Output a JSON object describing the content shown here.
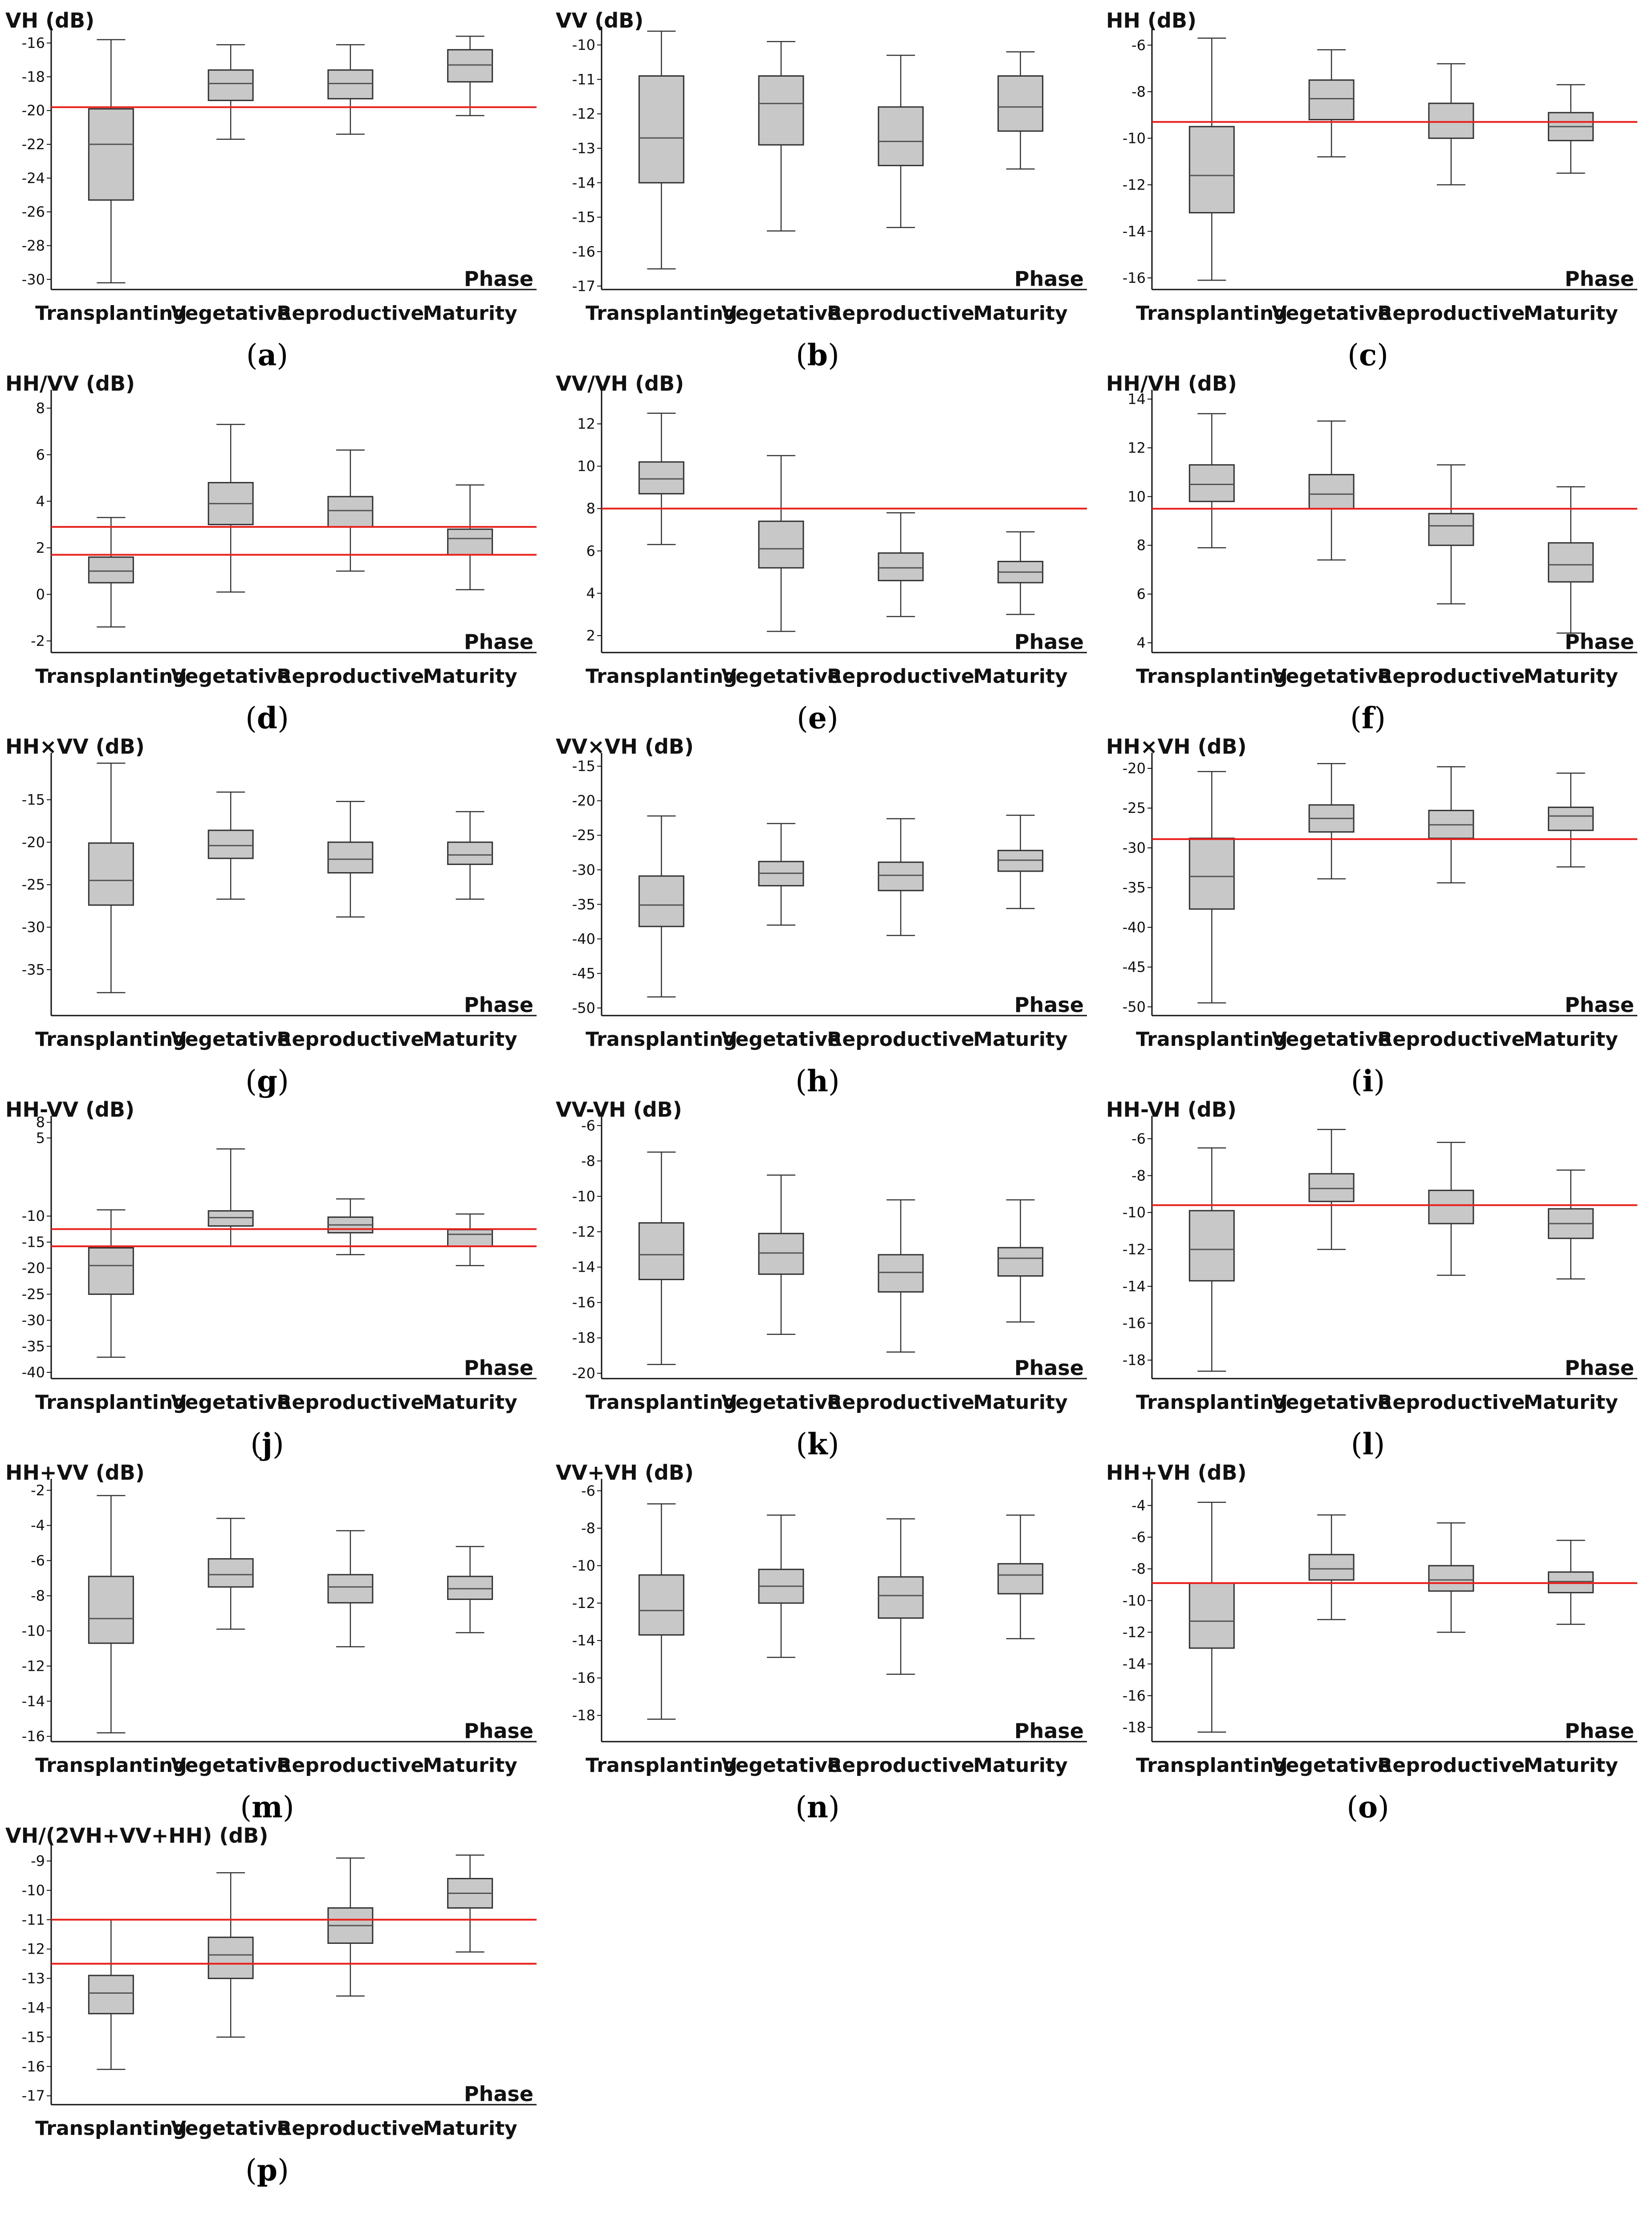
{
  "figure": {
    "phase_label": "Phase",
    "categories": [
      "Transplanting",
      "Vegetative",
      "Reproductive",
      "Maturity"
    ]
  },
  "colors": {
    "box_fill": "#c8c8c8",
    "box_stroke": "#333333",
    "median": "#555555",
    "threshold": "#e8211b",
    "axis": "#111111"
  },
  "chart_data": [
    {
      "type": "box",
      "id": "a",
      "title": "VH (dB)",
      "ylim": [
        -30.6,
        -15.3
      ],
      "yticks": [
        -16,
        -18,
        -20,
        -22,
        -24,
        -26,
        -28,
        -30
      ],
      "categories": [
        "Transplanting",
        "Vegetative",
        "Reproductive",
        "Maturity"
      ],
      "boxes": [
        {
          "whisker_low": -30.2,
          "q1": -25.3,
          "median": -22.0,
          "q3": -19.9,
          "whisker_high": -15.8
        },
        {
          "whisker_low": -21.7,
          "q1": -19.4,
          "median": -18.4,
          "q3": -17.6,
          "whisker_high": -16.1
        },
        {
          "whisker_low": -21.4,
          "q1": -19.3,
          "median": -18.4,
          "q3": -17.6,
          "whisker_high": -16.1
        },
        {
          "whisker_low": -20.3,
          "q1": -18.3,
          "median": -17.3,
          "q3": -16.4,
          "whisker_high": -15.6
        }
      ],
      "thresholds": [
        -19.8
      ],
      "caption": "a"
    },
    {
      "type": "box",
      "id": "b",
      "title": "VV (dB)",
      "ylim": [
        -17.1,
        -9.6
      ],
      "yticks": [
        -10,
        -11,
        -12,
        -13,
        -14,
        -15,
        -16,
        -17
      ],
      "categories": [
        "Transplanting",
        "Vegetative",
        "Reproductive",
        "Maturity"
      ],
      "boxes": [
        {
          "whisker_low": -16.5,
          "q1": -14.0,
          "median": -12.7,
          "q3": -10.9,
          "whisker_high": -9.6
        },
        {
          "whisker_low": -15.4,
          "q1": -12.9,
          "median": -11.7,
          "q3": -10.9,
          "whisker_high": -9.9
        },
        {
          "whisker_low": -15.3,
          "q1": -13.5,
          "median": -12.8,
          "q3": -11.8,
          "whisker_high": -10.3
        },
        {
          "whisker_low": -13.6,
          "q1": -12.5,
          "median": -11.8,
          "q3": -10.9,
          "whisker_high": -10.2
        }
      ],
      "thresholds": [],
      "caption": "b"
    },
    {
      "type": "box",
      "id": "c",
      "title": "HH (dB)",
      "ylim": [
        -16.5,
        -5.4
      ],
      "yticks": [
        -6,
        -8,
        -10,
        -12,
        -14,
        -16
      ],
      "categories": [
        "Transplanting",
        "Vegetative",
        "Reproductive",
        "Maturity"
      ],
      "boxes": [
        {
          "whisker_low": -16.1,
          "q1": -13.2,
          "median": -11.6,
          "q3": -9.5,
          "whisker_high": -5.7
        },
        {
          "whisker_low": -10.8,
          "q1": -9.2,
          "median": -8.3,
          "q3": -7.5,
          "whisker_high": -6.2
        },
        {
          "whisker_low": -12.0,
          "q1": -10.0,
          "median": -9.3,
          "q3": -8.5,
          "whisker_high": -6.8
        },
        {
          "whisker_low": -11.5,
          "q1": -10.1,
          "median": -9.5,
          "q3": -8.9,
          "whisker_high": -7.7
        }
      ],
      "thresholds": [
        -9.3
      ],
      "caption": "c"
    },
    {
      "type": "box",
      "id": "d",
      "title": "HH/VV (dB)",
      "ylim": [
        -2.5,
        8.6
      ],
      "yticks": [
        8,
        6,
        4,
        2,
        0,
        -2
      ],
      "categories": [
        "Transplanting",
        "Vegetative",
        "Reproductive",
        "Maturity"
      ],
      "boxes": [
        {
          "whisker_low": -1.4,
          "q1": 0.5,
          "median": 1.0,
          "q3": 1.6,
          "whisker_high": 3.3
        },
        {
          "whisker_low": 0.1,
          "q1": 3.0,
          "median": 3.9,
          "q3": 4.8,
          "whisker_high": 7.3
        },
        {
          "whisker_low": 1.0,
          "q1": 2.9,
          "median": 3.6,
          "q3": 4.2,
          "whisker_high": 6.2
        },
        {
          "whisker_low": 0.2,
          "q1": 1.7,
          "median": 2.4,
          "q3": 2.8,
          "whisker_high": 4.7
        }
      ],
      "thresholds": [
        2.9,
        1.7
      ],
      "caption": "d"
    },
    {
      "type": "box",
      "id": "e",
      "title": "VV/VH (dB)",
      "ylim": [
        1.2,
        13.4
      ],
      "yticks": [
        12,
        10,
        8,
        6,
        4,
        2
      ],
      "categories": [
        "Transplanting",
        "Vegetative",
        "Reproductive",
        "Maturity"
      ],
      "boxes": [
        {
          "whisker_low": 6.3,
          "q1": 8.7,
          "median": 9.4,
          "q3": 10.2,
          "whisker_high": 12.5
        },
        {
          "whisker_low": 2.2,
          "q1": 5.2,
          "median": 6.1,
          "q3": 7.4,
          "whisker_high": 10.5
        },
        {
          "whisker_low": 2.9,
          "q1": 4.6,
          "median": 5.2,
          "q3": 5.9,
          "whisker_high": 7.8
        },
        {
          "whisker_low": 3.0,
          "q1": 4.5,
          "median": 5.0,
          "q3": 5.5,
          "whisker_high": 6.9
        }
      ],
      "thresholds": [
        8.0
      ],
      "caption": "e"
    },
    {
      "type": "box",
      "id": "f",
      "title": "HH/VH (dB)",
      "ylim": [
        3.6,
        14.2
      ],
      "yticks": [
        14,
        12,
        10,
        8,
        6,
        4
      ],
      "categories": [
        "Transplanting",
        "Vegetative",
        "Reproductive",
        "Maturity"
      ],
      "boxes": [
        {
          "whisker_low": 7.9,
          "q1": 9.8,
          "median": 10.5,
          "q3": 11.3,
          "whisker_high": 13.4
        },
        {
          "whisker_low": 7.4,
          "q1": 9.5,
          "median": 10.1,
          "q3": 10.9,
          "whisker_high": 13.1
        },
        {
          "whisker_low": 5.6,
          "q1": 8.0,
          "median": 8.8,
          "q3": 9.3,
          "whisker_high": 11.3
        },
        {
          "whisker_low": 4.4,
          "q1": 6.5,
          "median": 7.2,
          "q3": 8.1,
          "whisker_high": 10.4
        }
      ],
      "thresholds": [
        9.5
      ],
      "caption": "f"
    },
    {
      "type": "box",
      "id": "g",
      "title": "HH×VV (dB)",
      "ylim": [
        -40.4,
        -10.0
      ],
      "yticks": [
        -15,
        -20,
        -25,
        -30,
        -35
      ],
      "categories": [
        "Transplanting",
        "Vegetative",
        "Reproductive",
        "Maturity"
      ],
      "boxes": [
        {
          "whisker_low": -37.7,
          "q1": -27.4,
          "median": -24.5,
          "q3": -20.1,
          "whisker_high": -10.7
        },
        {
          "whisker_low": -26.7,
          "q1": -21.9,
          "median": -20.4,
          "q3": -18.6,
          "whisker_high": -14.1
        },
        {
          "whisker_low": -28.8,
          "q1": -23.6,
          "median": -22.0,
          "q3": -20.0,
          "whisker_high": -15.2
        },
        {
          "whisker_low": -26.7,
          "q1": -22.6,
          "median": -21.5,
          "q3": -20.0,
          "whisker_high": -16.4
        }
      ],
      "thresholds": [],
      "caption": "g"
    },
    {
      "type": "box",
      "id": "h",
      "title": "VV×VH (dB)",
      "ylim": [
        -51.1,
        -13.7
      ],
      "yticks": [
        -15,
        -20,
        -25,
        -30,
        -35,
        -40,
        -45,
        -50
      ],
      "categories": [
        "Transplanting",
        "Vegetative",
        "Reproductive",
        "Maturity"
      ],
      "boxes": [
        {
          "whisker_low": -48.4,
          "q1": -38.2,
          "median": -35.1,
          "q3": -30.9,
          "whisker_high": -22.2
        },
        {
          "whisker_low": -38.0,
          "q1": -32.3,
          "median": -30.5,
          "q3": -28.8,
          "whisker_high": -23.3
        },
        {
          "whisker_low": -39.5,
          "q1": -33.0,
          "median": -30.8,
          "q3": -28.9,
          "whisker_high": -22.6
        },
        {
          "whisker_low": -35.6,
          "q1": -30.2,
          "median": -28.6,
          "q3": -27.2,
          "whisker_high": -22.1
        }
      ],
      "thresholds": [],
      "caption": "h"
    },
    {
      "type": "box",
      "id": "i",
      "title": "HH×VH (dB)",
      "ylim": [
        -51.1,
        -18.6
      ],
      "yticks": [
        -20,
        -25,
        -30,
        -35,
        -40,
        -45,
        -50
      ],
      "categories": [
        "Transplanting",
        "Vegetative",
        "Reproductive",
        "Maturity"
      ],
      "boxes": [
        {
          "whisker_low": -49.5,
          "q1": -37.7,
          "median": -33.6,
          "q3": -28.8,
          "whisker_high": -20.4
        },
        {
          "whisker_low": -33.9,
          "q1": -28.0,
          "median": -26.3,
          "q3": -24.6,
          "whisker_high": -19.4
        },
        {
          "whisker_low": -34.4,
          "q1": -28.8,
          "median": -27.1,
          "q3": -25.3,
          "whisker_high": -19.8
        },
        {
          "whisker_low": -32.4,
          "q1": -27.8,
          "median": -26.0,
          "q3": -24.9,
          "whisker_high": -20.6
        }
      ],
      "thresholds": [
        -28.9
      ],
      "caption": "i"
    },
    {
      "type": "box",
      "id": "j",
      "title": "HH-VV (dB)",
      "ylim": [
        -41.2,
        8.4
      ],
      "yticks": [
        8,
        5,
        -10,
        -15,
        -20,
        -25,
        -30,
        -35,
        -40
      ],
      "categories": [
        "Transplanting",
        "Vegetative",
        "Reproductive",
        "Maturity"
      ],
      "boxes": [
        {
          "whisker_low": -37.1,
          "q1": -25.0,
          "median": -19.5,
          "q3": -16.1,
          "whisker_high": -8.8
        },
        {
          "whisker_low": -15.8,
          "q1": -11.9,
          "median": -10.3,
          "q3": -9.0,
          "whisker_high": 2.9
        },
        {
          "whisker_low": -17.4,
          "q1": -13.2,
          "median": -11.7,
          "q3": -10.2,
          "whisker_high": -6.7
        },
        {
          "whisker_low": -19.5,
          "q1": -15.8,
          "median": -13.5,
          "q3": -12.6,
          "whisker_high": -9.6
        }
      ],
      "thresholds": [
        -12.5,
        -15.8
      ],
      "caption": "j"
    },
    {
      "type": "box",
      "id": "k",
      "title": "VV-VH (dB)",
      "ylim": [
        -20.3,
        -5.7
      ],
      "yticks": [
        -6,
        -8,
        -10,
        -12,
        -14,
        -16,
        -18,
        -20
      ],
      "categories": [
        "Transplanting",
        "Vegetative",
        "Reproductive",
        "Maturity"
      ],
      "boxes": [
        {
          "whisker_low": -19.5,
          "q1": -14.7,
          "median": -13.3,
          "q3": -11.5,
          "whisker_high": -7.5
        },
        {
          "whisker_low": -17.8,
          "q1": -14.4,
          "median": -13.2,
          "q3": -12.1,
          "whisker_high": -8.8
        },
        {
          "whisker_low": -18.8,
          "q1": -15.4,
          "median": -14.3,
          "q3": -13.3,
          "whisker_high": -10.2
        },
        {
          "whisker_low": -17.1,
          "q1": -14.5,
          "median": -13.5,
          "q3": -12.9,
          "whisker_high": -10.2
        }
      ],
      "thresholds": [],
      "caption": "k"
    },
    {
      "type": "box",
      "id": "l",
      "title": "HH-VH (dB)",
      "ylim": [
        -19.0,
        -5.0
      ],
      "yticks": [
        -6,
        -8,
        -10,
        -12,
        -14,
        -16,
        -18
      ],
      "categories": [
        "Transplanting",
        "Vegetative",
        "Reproductive",
        "Maturity"
      ],
      "boxes": [
        {
          "whisker_low": -18.6,
          "q1": -13.7,
          "median": -12.0,
          "q3": -9.9,
          "whisker_high": -6.5
        },
        {
          "whisker_low": -12.0,
          "q1": -9.4,
          "median": -8.7,
          "q3": -7.9,
          "whisker_high": -5.5
        },
        {
          "whisker_low": -13.4,
          "q1": -10.6,
          "median": -9.6,
          "q3": -8.8,
          "whisker_high": -6.2
        },
        {
          "whisker_low": -13.6,
          "q1": -11.4,
          "median": -10.6,
          "q3": -9.8,
          "whisker_high": -7.7
        }
      ],
      "thresholds": [
        -9.6
      ],
      "caption": "l"
    },
    {
      "type": "box",
      "id": "m",
      "title": "HH+VV (dB)",
      "ylim": [
        -16.3,
        -1.6
      ],
      "yticks": [
        -2,
        -4,
        -6,
        -8,
        -10,
        -12,
        -14,
        -16
      ],
      "categories": [
        "Transplanting",
        "Vegetative",
        "Reproductive",
        "Maturity"
      ],
      "boxes": [
        {
          "whisker_low": -15.8,
          "q1": -10.7,
          "median": -9.3,
          "q3": -6.9,
          "whisker_high": -2.3
        },
        {
          "whisker_low": -9.9,
          "q1": -7.5,
          "median": -6.8,
          "q3": -5.9,
          "whisker_high": -3.6
        },
        {
          "whisker_low": -10.9,
          "q1": -8.4,
          "median": -7.5,
          "q3": -6.8,
          "whisker_high": -4.3
        },
        {
          "whisker_low": -10.1,
          "q1": -8.2,
          "median": -7.6,
          "q3": -6.9,
          "whisker_high": -5.2
        }
      ],
      "thresholds": [],
      "caption": "m"
    },
    {
      "type": "box",
      "id": "n",
      "title": "VV+VH (dB)",
      "ylim": [
        -19.4,
        -5.6
      ],
      "yticks": [
        -6,
        -8,
        -10,
        -12,
        -14,
        -16,
        -18
      ],
      "categories": [
        "Transplanting",
        "Vegetative",
        "Reproductive",
        "Maturity"
      ],
      "boxes": [
        {
          "whisker_low": -18.2,
          "q1": -13.7,
          "median": -12.4,
          "q3": -10.5,
          "whisker_high": -6.7
        },
        {
          "whisker_low": -14.9,
          "q1": -12.0,
          "median": -11.1,
          "q3": -10.2,
          "whisker_high": -7.3
        },
        {
          "whisker_low": -15.8,
          "q1": -12.8,
          "median": -11.6,
          "q3": -10.6,
          "whisker_high": -7.5
        },
        {
          "whisker_low": -13.9,
          "q1": -11.5,
          "median": -10.5,
          "q3": -9.9,
          "whisker_high": -7.3
        }
      ],
      "thresholds": [],
      "caption": "n"
    },
    {
      "type": "box",
      "id": "o",
      "title": "HH+VH (dB)",
      "ylim": [
        -18.9,
        -2.6
      ],
      "yticks": [
        -4,
        -6,
        -8,
        -10,
        -12,
        -14,
        -16,
        -18
      ],
      "categories": [
        "Transplanting",
        "Vegetative",
        "Reproductive",
        "Maturity"
      ],
      "boxes": [
        {
          "whisker_low": -18.3,
          "q1": -13.0,
          "median": -11.3,
          "q3": -8.9,
          "whisker_high": -3.8
        },
        {
          "whisker_low": -11.2,
          "q1": -8.7,
          "median": -8.0,
          "q3": -7.1,
          "whisker_high": -4.6
        },
        {
          "whisker_low": -12.0,
          "q1": -9.4,
          "median": -8.7,
          "q3": -7.8,
          "whisker_high": -5.1
        },
        {
          "whisker_low": -11.5,
          "q1": -9.5,
          "median": -8.8,
          "q3": -8.2,
          "whisker_high": -6.2
        }
      ],
      "thresholds": [
        -8.9
      ],
      "caption": "o"
    },
    {
      "type": "box",
      "id": "p",
      "title": "VH/(2VH+VV+HH) (dB)",
      "ylim": [
        -17.3,
        -8.5
      ],
      "yticks": [
        -9,
        -10,
        -11,
        -12,
        -13,
        -14,
        -15,
        -16,
        -17
      ],
      "categories": [
        "Transplanting",
        "Vegetative",
        "Reproductive",
        "Maturity"
      ],
      "boxes": [
        {
          "whisker_low": -16.1,
          "q1": -14.2,
          "median": -13.5,
          "q3": -12.9,
          "whisker_high": -11.0
        },
        {
          "whisker_low": -15.0,
          "q1": -13.0,
          "median": -12.2,
          "q3": -11.6,
          "whisker_high": -9.4
        },
        {
          "whisker_low": -13.6,
          "q1": -11.8,
          "median": -11.2,
          "q3": -10.6,
          "whisker_high": -8.9
        },
        {
          "whisker_low": -12.1,
          "q1": -10.6,
          "median": -10.1,
          "q3": -9.6,
          "whisker_high": -8.8
        }
      ],
      "thresholds": [
        -11.0,
        -12.5
      ],
      "caption": "p"
    }
  ]
}
